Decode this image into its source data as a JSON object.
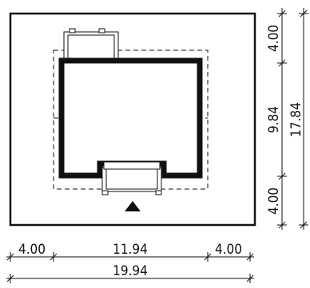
{
  "plot_plan": {
    "entrance_marker": "triangle-up",
    "dimensions": {
      "bottom": {
        "left_setback": "4.00",
        "building_width": "11.94",
        "right_setback": "4.00",
        "total_width": "19.94"
      },
      "right": {
        "top_setback": "4.00",
        "building_depth": "9.84",
        "bottom_setback": "4.00",
        "total_depth": "17.84"
      }
    }
  },
  "colors": {
    "line": "#111111",
    "background": "#ffffff"
  }
}
